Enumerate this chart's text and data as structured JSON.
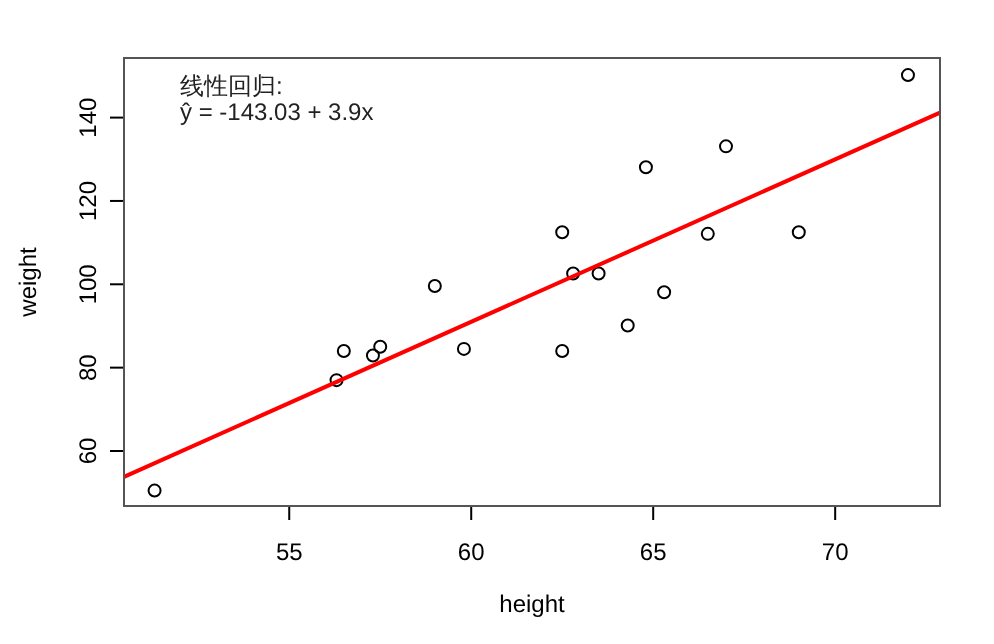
{
  "chart_data": {
    "type": "scatter",
    "xlabel": "height",
    "ylabel": "weight",
    "annotations": [
      "线性回归:",
      "ŷ = -143.03 + 3.9x"
    ],
    "xlim": [
      50.46,
      72.88
    ],
    "ylim": [
      46.8,
      154.3
    ],
    "xticks": [
      55,
      60,
      65,
      70
    ],
    "yticks": [
      60,
      80,
      100,
      120,
      140
    ],
    "grid": false,
    "series": [
      {
        "type": "scatter",
        "marker": "circle",
        "color": "#000000",
        "x": [
          51.3,
          56.3,
          56.5,
          57.3,
          57.5,
          59.0,
          59.8,
          62.5,
          62.8,
          63.5,
          62.5,
          64.3,
          64.8,
          65.3,
          66.5,
          67.0,
          69.0,
          72.0
        ],
        "values": [
          50.5,
          77.0,
          84.0,
          82.9,
          85.0,
          99.6,
          84.5,
          112.5,
          102.6,
          102.6,
          84.0,
          90.1,
          128.1,
          98.1,
          112.1,
          133.1,
          112.5,
          150.2
        ]
      },
      {
        "type": "line",
        "color": "#ff0000",
        "x": [
          50.46,
          72.88
        ],
        "values": [
          53.8,
          141.2
        ]
      }
    ]
  }
}
